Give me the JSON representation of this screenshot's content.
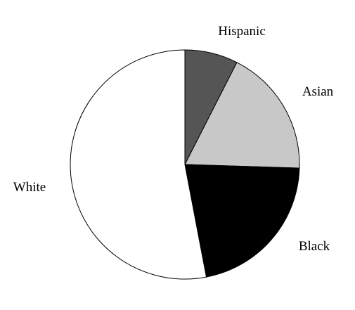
{
  "chart_data": {
    "type": "pie",
    "title": "",
    "categories": [
      "Hispanic",
      "Asian",
      "Black",
      "White"
    ],
    "values": [
      7.5,
      18,
      21.5,
      53
    ],
    "unit": "",
    "start_angle_deg": 0,
    "direction": "clockwise",
    "legend": "none",
    "colors": [
      "#555555",
      "#c8c8c8",
      "#000000",
      "#ffffff"
    ],
    "stroke_color": "#000000"
  }
}
